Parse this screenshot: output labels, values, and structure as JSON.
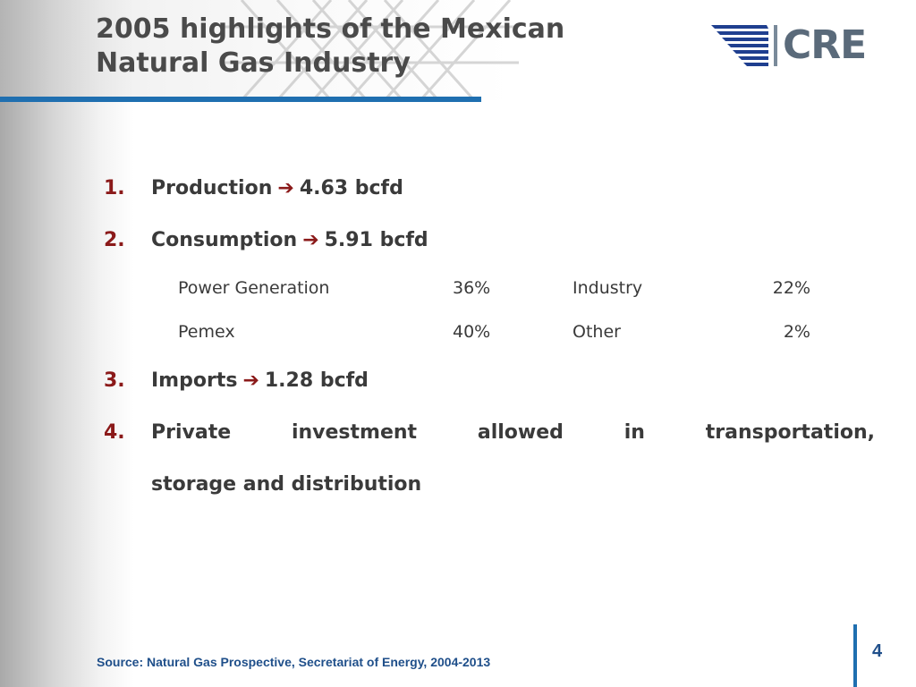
{
  "slide": {
    "title_line1": "2005 highlights of the Mexican",
    "title_line2": "Natural Gas Industry",
    "logo_text": "CRE",
    "page_number": "4",
    "source": "Source: Natural Gas Prospective, Secretariat of Energy, 2004-2013"
  },
  "items": [
    {
      "number": "1.",
      "label": "Production",
      "value": "4.63 bcfd"
    },
    {
      "number": "2.",
      "label": "Consumption",
      "value": "5.91 bcfd"
    },
    {
      "number": "3.",
      "label": "Imports",
      "value": "1.28 bcfd"
    },
    {
      "number": "4.",
      "line1": "Private investment allowed in transportation,",
      "line2": "storage and distribution"
    }
  ],
  "consumption_breakdown": [
    {
      "sector": "Power Generation",
      "share": "36%"
    },
    {
      "sector": "Industry",
      "share": "22%"
    },
    {
      "sector": "Pemex",
      "share": "40%"
    },
    {
      "sector": "Other",
      "share": "2%"
    }
  ],
  "colors": {
    "title": "#4a4a4a",
    "accent_rule": "#1f6fb0",
    "number": "#8b1a1a",
    "footer": "#1f4f8a"
  }
}
